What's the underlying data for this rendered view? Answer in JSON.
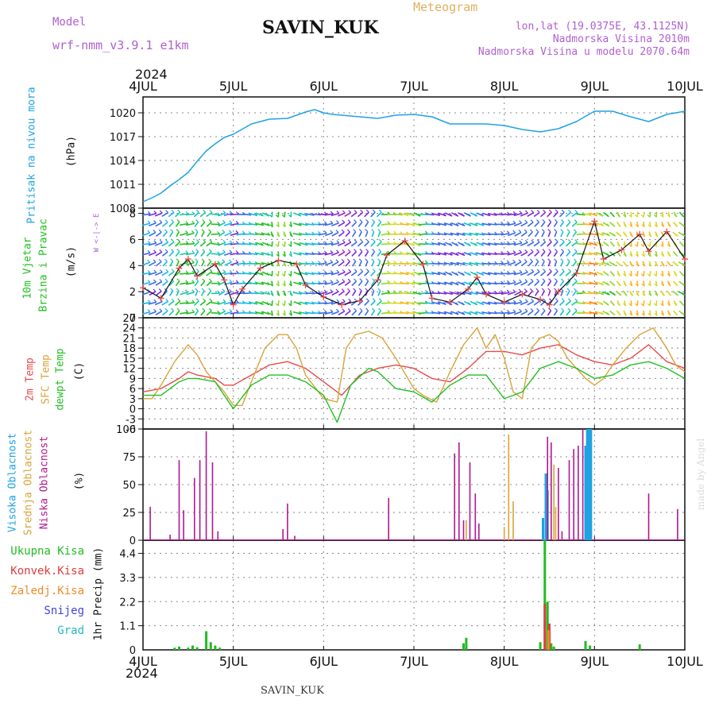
{
  "header": {
    "model_label": "Model",
    "model_name": "wrf-nmm_v3.9.1 e1km",
    "station_title": "SAVIN_KUK",
    "meteogram_label": "Meteogram",
    "lonlat": "lon,lat (19.0375E, 43.1125N)",
    "elevation": "Nadmorska Visina 2010m",
    "model_elevation": "Nadmorska Visina u modelu 2070.64m",
    "year_top": "2024",
    "year_bottom": "2024",
    "footer_station": "SAVIN_KUK",
    "credit": "made by Angel"
  },
  "colors": {
    "pressure": "#1fa3e3",
    "temp2m": "#e84a4a",
    "sfc_temp": "#d9a43a",
    "dewpoint": "#22c022",
    "high_cloud": "#1fa3e3",
    "mid_cloud": "#d9a43a",
    "low_cloud": "#b0178f",
    "total_precip": "#22bb22",
    "convective_precip": "#e03c3c",
    "frozen_precip": "#f08a2a",
    "snow": "#4444dd",
    "graupel": "#22bbbb",
    "purple_text": "#b060d0",
    "gold_text": "#e0b060"
  },
  "time_axis": {
    "start": "4JUL",
    "labels": [
      "4JUL",
      "5JUL",
      "6JUL",
      "7JUL",
      "8JUL",
      "9JUL",
      "10JUL"
    ]
  },
  "panels": {
    "pressure": {
      "ylabel_1": "Pritisak na nivou mora",
      "ylabel_2": "(hPa)"
    },
    "wind": {
      "ylabel_1": "10m Vjetar",
      "ylabel_2": "Brzina i Pravac",
      "ylabel_3": "(m/s)",
      "compass": "W  <-|->  E"
    },
    "temperature": {
      "ylabel_1": "2m Temp",
      "ylabel_2": "SFC Temp",
      "ylabel_3": "dewpt Temp",
      "ylabel_4": "(C)"
    },
    "cloud": {
      "ylabel_1": "Visoka Oblacnost",
      "ylabel_2": "Srednja Oblacnost",
      "ylabel_3": "Niska Oblacnost",
      "ylabel_4": "(%)"
    },
    "precip": {
      "legend_1": "Ukupna Kisa",
      "legend_2": "Konvek.Kisa",
      "legend_3": "Zaledj.Kisa",
      "legend_4": "Snijeg",
      "legend_5": "Grad",
      "ylabel": "1hr Precip (mm)"
    }
  },
  "chart_data": [
    {
      "type": "line",
      "name": "pressure",
      "ylim": [
        1008,
        1022
      ],
      "yticks": [
        1008,
        1011,
        1014,
        1017,
        1020
      ],
      "x_days": [
        0,
        0.1,
        0.2,
        0.3,
        0.4,
        0.5,
        0.6,
        0.7,
        0.8,
        0.9,
        1.0,
        1.2,
        1.4,
        1.6,
        1.8,
        1.9,
        2.0,
        2.1,
        2.2,
        2.4,
        2.6,
        2.8,
        3.0,
        3.2,
        3.4,
        3.6,
        3.8,
        4.0,
        4.2,
        4.4,
        4.6,
        4.8,
        5.0,
        5.2,
        5.4,
        5.6,
        5.8,
        6.0
      ],
      "values": [
        1008.8,
        1009.3,
        1009.9,
        1010.8,
        1011.6,
        1012.5,
        1013.9,
        1015.2,
        1016.1,
        1016.9,
        1017.3,
        1018.6,
        1019.2,
        1019.3,
        1020.1,
        1020.4,
        1020.0,
        1019.8,
        1019.7,
        1019.5,
        1019.3,
        1019.7,
        1019.8,
        1019.5,
        1018.6,
        1018.6,
        1018.6,
        1018.4,
        1017.9,
        1017.6,
        1018.0,
        1018.9,
        1020.2,
        1020.2,
        1019.5,
        1018.9,
        1019.8,
        1020.2
      ]
    },
    {
      "type": "line",
      "name": "wind_speed",
      "ylim": [
        0,
        8.4
      ],
      "yticks": [
        0,
        2,
        4,
        6,
        8
      ],
      "x_days": [
        0,
        0.2,
        0.4,
        0.5,
        0.6,
        0.8,
        0.9,
        1.0,
        1.1,
        1.3,
        1.5,
        1.7,
        1.8,
        2.0,
        2.2,
        2.4,
        2.6,
        2.7,
        2.9,
        3.1,
        3.2,
        3.4,
        3.6,
        3.7,
        3.8,
        4.0,
        4.2,
        4.4,
        4.5,
        4.6,
        4.8,
        5.0,
        5.1,
        5.3,
        5.5,
        5.6,
        5.8,
        6.0
      ],
      "values": [
        2.3,
        1.5,
        3.8,
        4.5,
        3.2,
        4.1,
        2.9,
        1.0,
        2.2,
        3.8,
        4.4,
        4.1,
        2.5,
        1.6,
        1.0,
        1.3,
        2.9,
        4.8,
        5.9,
        4.1,
        1.5,
        1.2,
        2.2,
        3.1,
        1.8,
        1.2,
        1.8,
        1.4,
        1.0,
        2.0,
        3.4,
        7.4,
        4.5,
        5.2,
        6.4,
        5.1,
        6.6,
        4.5
      ]
    },
    {
      "type": "line",
      "series": [
        {
          "name": "2m Temp",
          "x_days": [
            0,
            0.2,
            0.4,
            0.5,
            0.6,
            0.8,
            0.9,
            1.0,
            1.2,
            1.4,
            1.6,
            1.8,
            2.0,
            2.2,
            2.4,
            2.6,
            2.8,
            3.0,
            3.2,
            3.4,
            3.6,
            3.8,
            4.0,
            4.2,
            4.4,
            4.6,
            4.8,
            5.0,
            5.2,
            5.4,
            5.6,
            5.8,
            6.0
          ],
          "values": [
            5,
            6,
            9,
            11,
            10,
            9,
            7,
            7,
            10,
            13,
            14,
            12,
            8,
            4,
            10,
            12,
            13,
            12,
            9,
            8,
            12,
            17,
            17,
            16,
            18,
            19,
            16,
            14,
            13,
            15,
            19,
            14,
            12
          ]
        },
        {
          "name": "SFC Temp",
          "x_days": [
            0,
            0.1,
            0.2,
            0.35,
            0.5,
            0.6,
            0.7,
            0.8,
            0.9,
            1.0,
            1.1,
            1.2,
            1.35,
            1.5,
            1.6,
            1.7,
            1.8,
            2.0,
            2.15,
            2.25,
            2.35,
            2.5,
            2.65,
            2.8,
            3.0,
            3.1,
            3.25,
            3.4,
            3.55,
            3.7,
            3.8,
            3.9,
            4.0,
            4.1,
            4.2,
            4.3,
            4.4,
            4.5,
            4.6,
            4.7,
            4.8,
            4.9,
            5.0,
            5.1,
            5.2,
            5.35,
            5.5,
            5.65,
            5.8,
            5.9,
            6.0
          ],
          "values": [
            3,
            3,
            7,
            14,
            19,
            16,
            11,
            8,
            5,
            1,
            1,
            8,
            18,
            22,
            22,
            18,
            10,
            3,
            2,
            18,
            22,
            23,
            21,
            15,
            6,
            4,
            2,
            11,
            19,
            24,
            18,
            22,
            15,
            5,
            3,
            18,
            21,
            22,
            20,
            15,
            12,
            9,
            7,
            9,
            13,
            18,
            22,
            24,
            18,
            13,
            11
          ]
        },
        {
          "name": "dewpt Temp",
          "x_days": [
            0,
            0.2,
            0.4,
            0.5,
            0.6,
            0.8,
            0.9,
            1.0,
            1.2,
            1.4,
            1.6,
            1.8,
            2.0,
            2.15,
            2.3,
            2.5,
            2.6,
            2.8,
            3.0,
            3.2,
            3.4,
            3.6,
            3.8,
            4.0,
            4.2,
            4.4,
            4.6,
            4.8,
            5.0,
            5.2,
            5.4,
            5.6,
            5.8,
            6.0
          ],
          "values": [
            4,
            4,
            8,
            9,
            9,
            8,
            4,
            0,
            7,
            10,
            10,
            8,
            4,
            -4,
            7,
            12,
            11,
            6,
            5,
            2,
            7,
            10,
            10,
            3,
            5,
            12,
            14,
            12,
            9,
            10,
            13,
            14,
            12,
            9
          ]
        }
      ],
      "ylim": [
        -6,
        27
      ],
      "yticks": [
        -6,
        -3,
        0,
        3,
        6,
        9,
        12,
        15,
        18,
        21,
        24,
        27
      ]
    },
    {
      "type": "bar",
      "name": "cloud",
      "ylim": [
        0,
        100
      ],
      "yticks": [
        0,
        25,
        50,
        75,
        100
      ],
      "series": [
        {
          "name": "Visoka Oblacnost",
          "x_days": [
            4.43,
            4.46,
            4.48,
            4.9,
            4.92,
            4.94,
            4.96
          ],
          "values": [
            20,
            60,
            45,
            85,
            100,
            100,
            100
          ]
        },
        {
          "name": "Srednja Oblacnost",
          "x_days": [
            3.58,
            4.0,
            4.05,
            4.1,
            4.55,
            4.57
          ],
          "values": [
            18,
            12,
            95,
            35,
            68,
            30
          ]
        },
        {
          "name": "Niska Oblacnost",
          "x_days": [
            0.08,
            0.3,
            0.4,
            0.45,
            0.57,
            0.63,
            0.7,
            0.77,
            0.83,
            1.55,
            1.6,
            1.68,
            2.72,
            3.45,
            3.5,
            3.55,
            3.62,
            3.68,
            3.72,
            4.48,
            4.52,
            4.6,
            4.64,
            4.72,
            4.77,
            4.82,
            4.87,
            5.6,
            5.92
          ],
          "values": [
            30,
            5,
            72,
            27,
            56,
            72,
            98,
            70,
            8,
            10,
            33,
            4,
            38,
            78,
            88,
            18,
            70,
            42,
            15,
            93,
            88,
            65,
            8,
            72,
            82,
            85,
            100,
            42,
            28
          ]
        }
      ]
    },
    {
      "type": "bar",
      "name": "precip",
      "ylim": [
        0,
        5.0
      ],
      "yticks": [
        1.1,
        2.2,
        3.3,
        4.4
      ],
      "series": [
        {
          "name": "Ukupna Kisa",
          "x_days": [
            0.35,
            0.4,
            0.5,
            0.55,
            0.6,
            0.7,
            0.75,
            0.8,
            0.85,
            3.55,
            3.58,
            4.4,
            4.45,
            4.48,
            4.52,
            4.55,
            4.9,
            4.95,
            5.5
          ],
          "values": [
            0.1,
            0.15,
            0.1,
            0.2,
            0.12,
            0.85,
            0.35,
            0.2,
            0.1,
            0.3,
            0.55,
            0.35,
            5.0,
            2.2,
            0.3,
            0.15,
            0.4,
            0.2,
            0.25
          ]
        },
        {
          "name": "Konvek.Kisa",
          "x_days": [
            4.45,
            4.5
          ],
          "values": [
            2.1,
            1.2
          ]
        },
        {
          "name": "Zaledj.Kisa",
          "x_days": [
            4.49
          ],
          "values": [
            0.9
          ]
        }
      ]
    }
  ]
}
